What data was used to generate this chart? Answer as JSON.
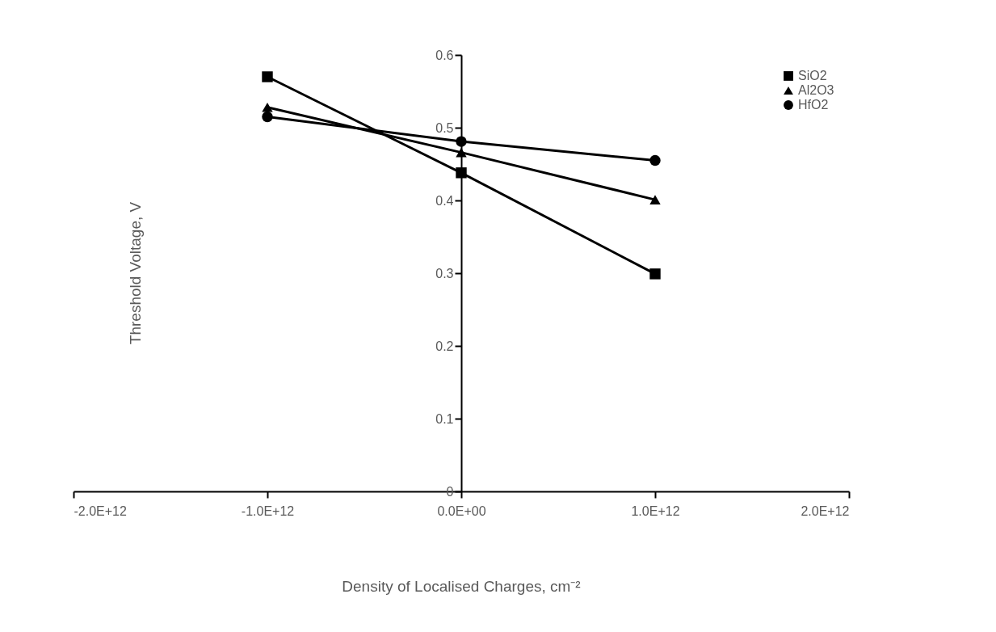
{
  "chart_data": {
    "type": "line",
    "xlabel": "Density of Localised Charges, cm⁻²",
    "ylabel": "Threshold Voltage, V",
    "x": [
      -1000000000000.0,
      0,
      1000000000000.0
    ],
    "series": [
      {
        "name": "SiO2",
        "color": "#000000",
        "marker": "square",
        "values": [
          0.57,
          0.438,
          0.299
        ]
      },
      {
        "name": "Al2O3",
        "color": "#000000",
        "marker": "triangle",
        "values": [
          0.528,
          0.466,
          0.401
        ]
      },
      {
        "name": "HfO2",
        "color": "#000000",
        "marker": "circle",
        "values": [
          0.515,
          0.481,
          0.455
        ]
      }
    ],
    "xlim": [
      -2000000000000.0,
      2000000000000.0
    ],
    "xticks": [
      {
        "value": -2000000000000.0,
        "label": "-2.0E+12"
      },
      {
        "value": -1000000000000.0,
        "label": "-1.0E+12"
      },
      {
        "value": 0,
        "label": "0.0E+00"
      },
      {
        "value": 1000000000000.0,
        "label": "1.0E+12"
      },
      {
        "value": 2000000000000.0,
        "label": "2.0E+12"
      }
    ],
    "ylim": [
      0,
      0.6
    ],
    "yticks": [
      0,
      0.1,
      0.2,
      0.3,
      0.4,
      0.5,
      0.6
    ],
    "grid": false,
    "legend": "top right",
    "line_style": "solid"
  }
}
